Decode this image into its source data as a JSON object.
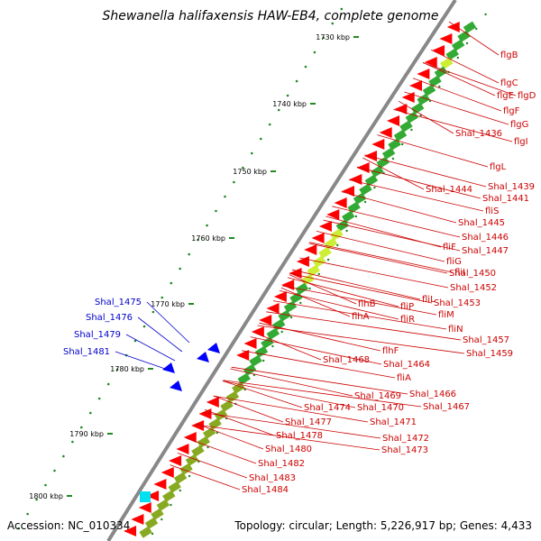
{
  "title": "Shewanella halifaxensis HAW-EB4, complete genome",
  "accession": "Accession: NC_010334",
  "topology": "Topology: circular; Length: 5,226,917 bp; Genes: 4,433",
  "ruler": [
    "1730 kbp",
    "1740 kbp",
    "1750 kbp",
    "1760 kbp",
    "1770 kbp",
    "1780 kbp",
    "1790 kbp",
    "1800 kbp"
  ],
  "genes_red": [
    "flgB",
    "flgC",
    "flgE",
    "flgD",
    "flgF",
    "flgG",
    "Shal_1436",
    "flgI",
    "flgL",
    "Shal_1439",
    "Shal_1444",
    "Shal_1441",
    "fliS",
    "Shal_1445",
    "Shal_1446",
    "fliF",
    "Shal_1447",
    "fliG",
    "fliI",
    "Shal_1450",
    "Shal_1452",
    "fliL",
    "Shal_1453",
    "flhB",
    "fliP",
    "fliM",
    "flhA",
    "fliR",
    "fliN",
    "Shal_1457",
    "Shal_1459",
    "flhF",
    "Shal_1468",
    "Shal_1464",
    "fliA",
    "Shal_1469",
    "Shal_1466",
    "Shal_1474",
    "Shal_1470",
    "Shal_1467",
    "Shal_1477",
    "Shal_1471",
    "Shal_1478",
    "Shal_1472",
    "Shal_1480",
    "Shal_1473",
    "Shal_1482",
    "Shal_1483",
    "Shal_1484"
  ],
  "genes_blue": [
    "Shal_1475",
    "Shal_1476",
    "Shal_1479",
    "Shal_1481"
  ],
  "colors": {
    "red_label": "#cc0000",
    "blue_label": "#0000cc",
    "backbone": "#888888",
    "forward_cds": "#ff0000",
    "reverse_cds": "#0000ff",
    "cog_green": "#33aa33",
    "cog_lime": "#ccee33",
    "tick_green": "#228822"
  }
}
